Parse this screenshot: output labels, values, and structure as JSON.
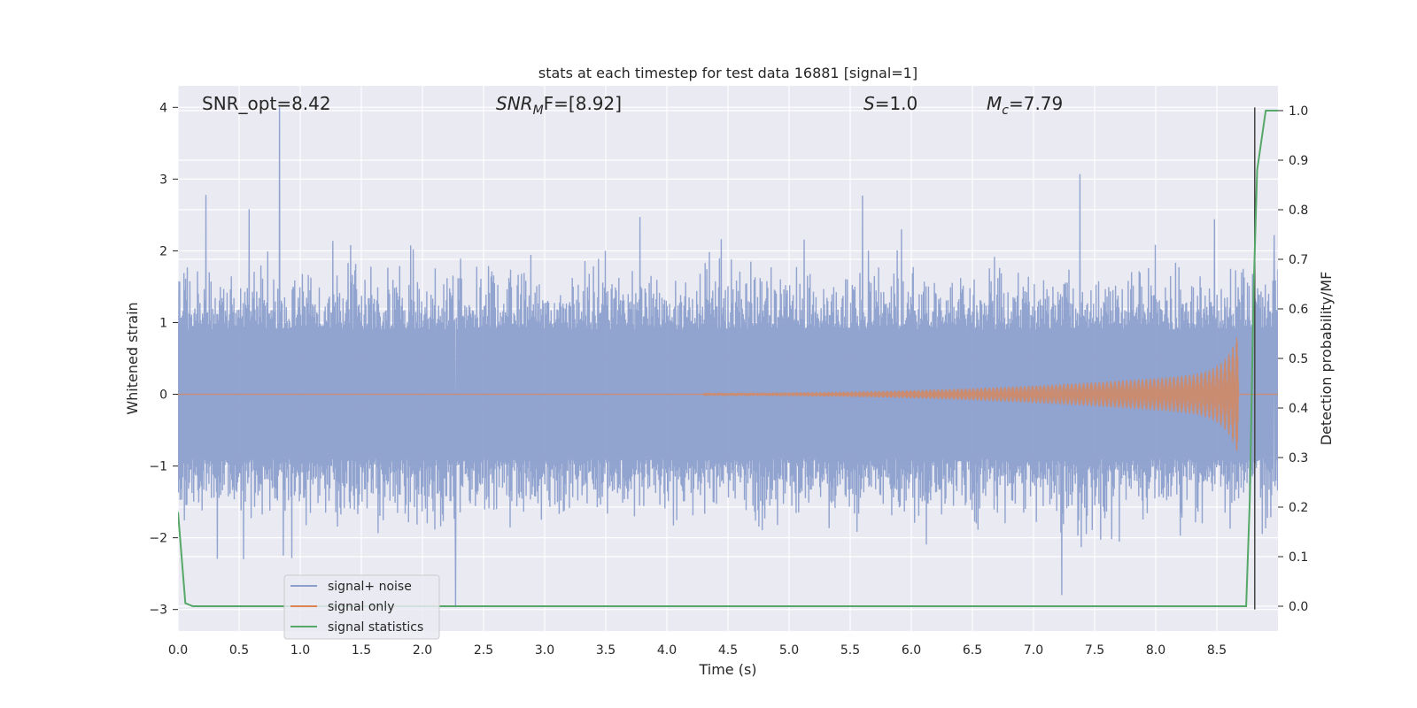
{
  "chart_data": {
    "type": "line",
    "title": "stats at each timestep for test data 16881 [signal=1]",
    "xlabel": "Time (s)",
    "ylabel": "Whitened strain",
    "y2label": "Detection probability/MF",
    "xlim": [
      0,
      9.0
    ],
    "ylim": [
      -3.3,
      4.3
    ],
    "y2lim": [
      -0.05,
      1.05
    ],
    "x_ticks": [
      "0.0",
      "0.5",
      "1.0",
      "1.5",
      "2.0",
      "2.5",
      "3.0",
      "3.5",
      "4.0",
      "4.5",
      "5.0",
      "5.5",
      "6.0",
      "6.5",
      "7.0",
      "7.5",
      "8.0",
      "8.5"
    ],
    "y_ticks": [
      "−3",
      "−2",
      "−1",
      "0",
      "1",
      "2",
      "3",
      "4"
    ],
    "y2_ticks": [
      "0.0",
      "0.1",
      "0.2",
      "0.3",
      "0.4",
      "0.5",
      "0.6",
      "0.7",
      "0.8",
      "0.9",
      "1.0"
    ],
    "grid": true,
    "legend_position": "lower-left",
    "annotations": {
      "snr_opt": "SNR_opt=8.42",
      "snr_mf_main": "SNR",
      "snr_mf_sub": "M",
      "snr_mf_rest": "F=[8.92]",
      "s_main": "S",
      "s_rest": "=1.0",
      "mc_main": "M",
      "mc_sub": "c",
      "mc_rest": "=7.79"
    },
    "series": [
      {
        "name": "signal+ noise",
        "color": "#8c9fcc",
        "description_values": {
          "approx_envelope_upper": 1.6,
          "approx_envelope_lower": -1.6,
          "peaks": [
            {
              "x": 0.83,
              "y": 4.0
            },
            {
              "x": 0.23,
              "y": 2.78
            },
            {
              "x": 7.38,
              "y": 3.07
            },
            {
              "x": 5.6,
              "y": 2.77
            },
            {
              "x": 0.58,
              "y": 2.58
            },
            {
              "x": 2.27,
              "y": -2.97
            },
            {
              "x": 7.23,
              "y": -2.8
            },
            {
              "x": 8.48,
              "y": 2.44
            },
            {
              "x": 8.97,
              "y": 2.22
            }
          ]
        }
      },
      {
        "name": "signal only",
        "color": "#dd8452",
        "chirp": {
          "start": 4.3,
          "end": 8.68,
          "peak_amplitude": 0.88
        }
      },
      {
        "name": "signal statistics",
        "color": "#55a868",
        "axis": "right",
        "x": [
          0.0,
          0.06,
          0.12,
          8.74,
          8.77,
          8.8,
          8.83,
          8.9,
          8.95,
          9.0
        ],
        "values": [
          0.19,
          0.006,
          0.0,
          0.0,
          0.22,
          0.63,
          0.88,
          1.0,
          1.0,
          1.0
        ]
      }
    ],
    "vline": {
      "x": 8.81,
      "color": "#444444"
    }
  }
}
